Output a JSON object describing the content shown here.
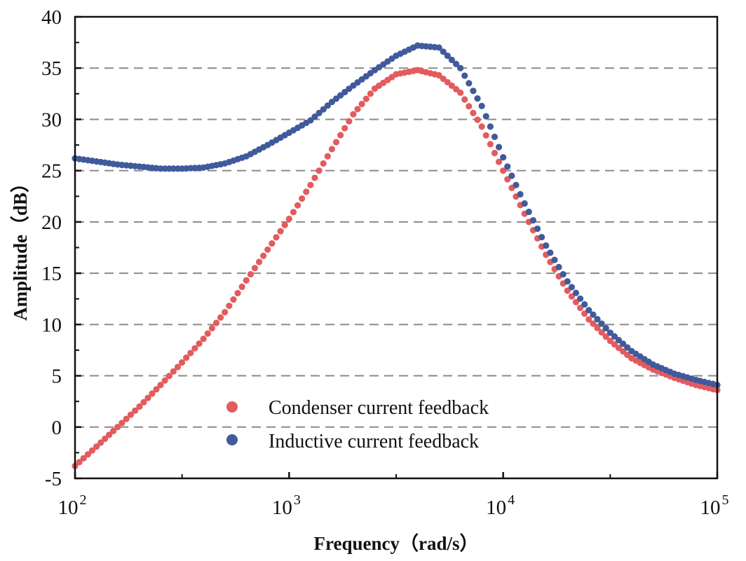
{
  "chart_data": {
    "type": "scatter",
    "xlabel": "Frequency（rad/s）",
    "ylabel": "Amplitude（dB）",
    "xscale": "log",
    "xlim": [
      100,
      100000
    ],
    "ylim": [
      -5,
      40
    ],
    "x_ticks": [
      {
        "base": "10",
        "exp": "2"
      },
      {
        "base": "10",
        "exp": "3"
      },
      {
        "base": "10",
        "exp": "4"
      },
      {
        "base": "10",
        "exp": "5"
      }
    ],
    "y_ticks": [
      "-5",
      "0",
      "5",
      "10",
      "15",
      "20",
      "25",
      "30",
      "35",
      "40"
    ],
    "grid": "horizontal dashed at major y ticks",
    "legend_position": "bottom-center",
    "x": [
      100,
      126,
      158,
      200,
      251,
      316,
      398,
      501,
      631,
      794,
      1000,
      1259,
      1585,
      1995,
      2512,
      3162,
      3981,
      5012,
      6310,
      7943,
      10000,
      12589,
      15849,
      19953,
      25119,
      31623,
      39811,
      50119,
      63096,
      79433,
      100000
    ],
    "series": [
      {
        "name": "Condenser current feedback",
        "color": "#e35b5e",
        "values": [
          -3.8,
          -1.9,
          0.0,
          2.0,
          4.1,
          6.3,
          8.6,
          11.2,
          14.3,
          17.3,
          20.3,
          23.6,
          27.1,
          30.5,
          33.0,
          34.4,
          34.8,
          34.3,
          32.6,
          29.3,
          25.0,
          20.8,
          16.8,
          13.3,
          10.5,
          8.4,
          6.7,
          5.6,
          4.8,
          4.1,
          3.6
        ]
      },
      {
        "name": "Inductive current feedback",
        "color": "#405a9b",
        "values": [
          26.2,
          25.9,
          25.6,
          25.4,
          25.2,
          25.2,
          25.3,
          25.7,
          26.4,
          27.5,
          28.7,
          29.9,
          31.7,
          33.3,
          34.8,
          36.2,
          37.2,
          37.0,
          35.0,
          31.3,
          26.3,
          21.8,
          17.7,
          14.2,
          11.4,
          9.2,
          7.4,
          6.1,
          5.2,
          4.6,
          4.1
        ]
      }
    ]
  }
}
